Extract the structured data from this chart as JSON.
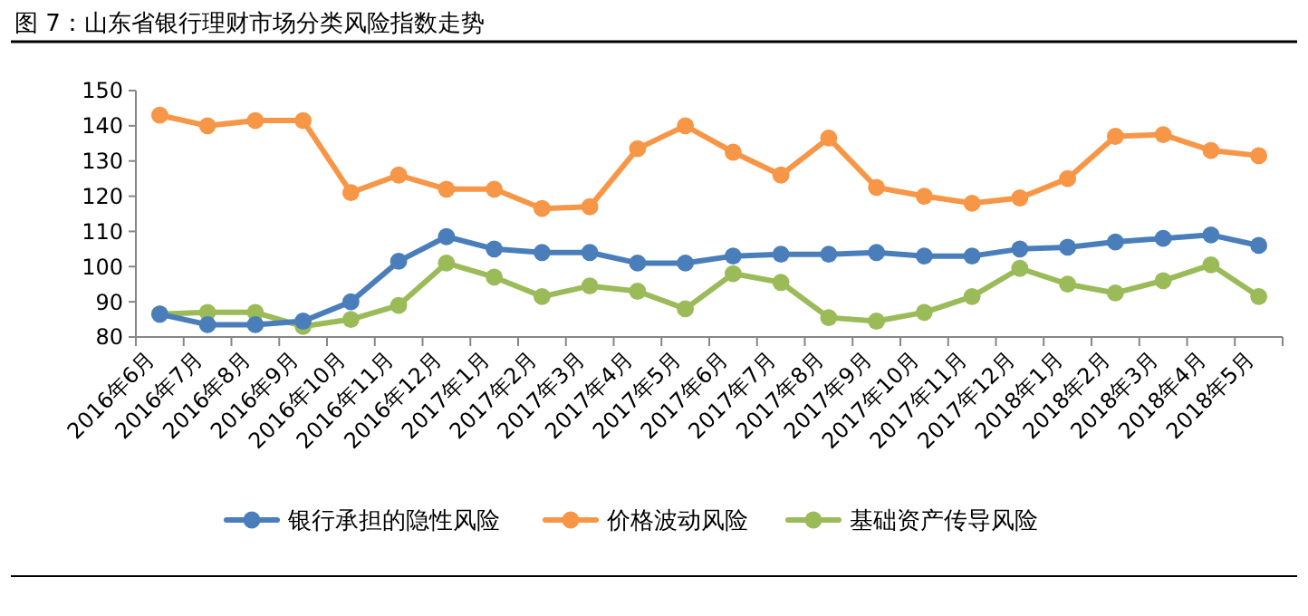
{
  "chart_data": {
    "type": "line",
    "title": "图 7：山东省银行理财市场分类风险指数走势",
    "categories": [
      "2016年6月",
      "2016年7月",
      "2016年8月",
      "2016年9月",
      "2016年10月",
      "2016年11月",
      "2016年12月",
      "2017年1月",
      "2017年2月",
      "2017年3月",
      "2017年4月",
      "2017年5月",
      "2017年6月",
      "2017年7月",
      "2017年8月",
      "2017年9月",
      "2017年10月",
      "2017年11月",
      "2017年12月",
      "2018年1月",
      "2018年2月",
      "2018年3月",
      "2018年4月",
      "2018年5月"
    ],
    "series": [
      {
        "name": "银行承担的隐性风险",
        "color": "#4a7ebb",
        "values": [
          86.5,
          83.5,
          83.5,
          84.5,
          90,
          101.5,
          108.5,
          105,
          104,
          104,
          101,
          101,
          103,
          103.5,
          103.5,
          104,
          103,
          103,
          105,
          105.5,
          107,
          108,
          109,
          106
        ]
      },
      {
        "name": "价格波动风险",
        "color": "#f79646",
        "values": [
          143,
          140,
          141.5,
          141.5,
          121,
          126,
          122,
          122,
          116.5,
          117,
          133.5,
          140,
          132.5,
          126,
          136.5,
          122.5,
          120,
          118,
          119.5,
          125,
          137,
          137.5,
          133,
          131.5
        ]
      },
      {
        "name": "基础资产传导风险",
        "color": "#9bbb59",
        "values": [
          86.5,
          87,
          87,
          83,
          85,
          89,
          101,
          97,
          91.5,
          94.5,
          93,
          88,
          98,
          95.5,
          85.5,
          84.5,
          87,
          91.5,
          99.5,
          95,
          92.5,
          96,
          100.5,
          91.5
        ]
      }
    ],
    "ylim": [
      80,
      150
    ],
    "yticks": [
      80,
      90,
      100,
      110,
      120,
      130,
      140,
      150
    ],
    "grid": false,
    "legend": "bottom",
    "marker": "circle",
    "line_style": "solid"
  }
}
